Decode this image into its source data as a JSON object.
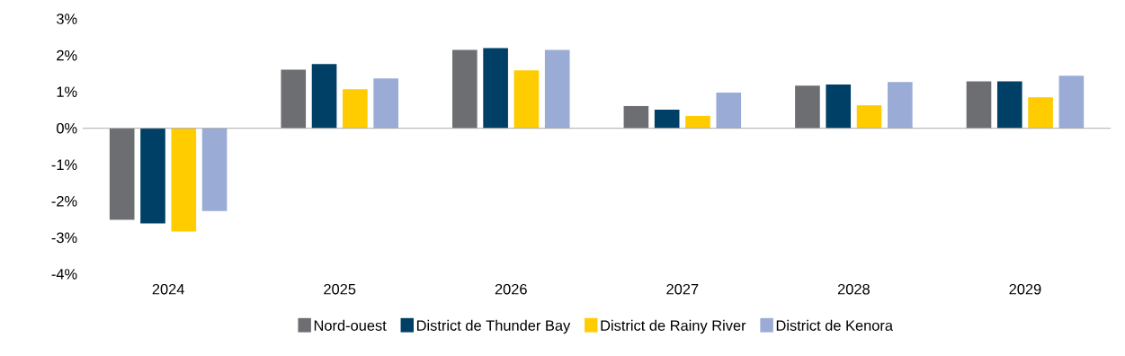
{
  "chart_data": {
    "type": "bar",
    "categories": [
      "2024",
      "2025",
      "2026",
      "2027",
      "2028",
      "2029"
    ],
    "series": [
      {
        "name": "Nord-ouest",
        "color": "#6d6e71",
        "values": [
          -2.51,
          1.61,
          2.15,
          0.61,
          1.17,
          1.29
        ]
      },
      {
        "name": "District de Thunder Bay",
        "color": "#003f66",
        "values": [
          -2.61,
          1.76,
          2.2,
          0.51,
          1.2,
          1.29
        ]
      },
      {
        "name": "District de Rainy River",
        "color": "#ffcc00",
        "values": [
          -2.83,
          1.07,
          1.59,
          0.34,
          0.63,
          0.85
        ]
      },
      {
        "name": "District de Kenora",
        "color": "#9aabd6",
        "values": [
          -2.27,
          1.37,
          2.15,
          0.98,
          1.27,
          1.44
        ]
      }
    ],
    "ylim": [
      -4,
      3
    ],
    "yticks": [
      {
        "value": -4,
        "label": "-4%"
      },
      {
        "value": -3,
        "label": "-3%"
      },
      {
        "value": -2,
        "label": "-2%"
      },
      {
        "value": -1,
        "label": "-1%"
      },
      {
        "value": 0,
        "label": "0%"
      },
      {
        "value": 1,
        "label": "1%"
      },
      {
        "value": 2,
        "label": "2%"
      },
      {
        "value": 3,
        "label": "3%"
      }
    ],
    "legend": "bottom"
  }
}
